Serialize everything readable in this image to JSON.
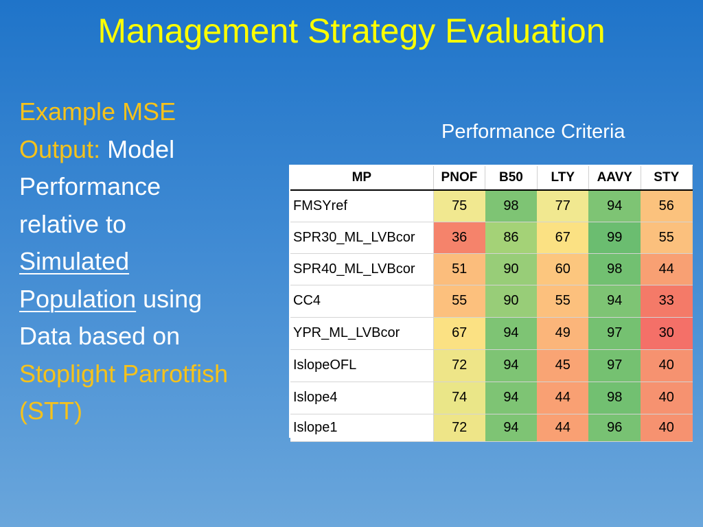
{
  "slide": {
    "title": "Management Strategy Evaluation",
    "left_text": {
      "part1": "Example MSE",
      "part2": "Output:",
      "part3": " Model",
      "part4": "Performance",
      "part5": "relative to",
      "part6": "Simulated",
      "part7": "Population",
      "part8": " using",
      "part9": "Data based on",
      "part10": "Stoplight Parrotfish",
      "part11": "(STT)"
    },
    "criteria_label": "Performance Criteria"
  },
  "table": {
    "headers": [
      "MP",
      "PNOF",
      "B50",
      "LTY",
      "AAVY",
      "STY"
    ],
    "rows": [
      {
        "name": "FMSYref",
        "values": [
          "75",
          "98",
          "77",
          "94",
          "56"
        ],
        "colors": [
          "#f1e890",
          "#7ec474",
          "#f1e890",
          "#7ec474",
          "#fbc27d"
        ]
      },
      {
        "name": "SPR30_ML_LVBcor",
        "values": [
          "36",
          "86",
          "67",
          "99",
          "55"
        ],
        "colors": [
          "#f5836b",
          "#a4d277",
          "#fbe183",
          "#6bbd70",
          "#fbc07d"
        ]
      },
      {
        "name": "SPR40_ML_LVBcor",
        "values": [
          "51",
          "90",
          "60",
          "98",
          "44"
        ],
        "colors": [
          "#fbbd7c",
          "#98cd78",
          "#fcc67e",
          "#72c071",
          "#f8a073"
        ]
      },
      {
        "name": "CC4",
        "values": [
          "55",
          "90",
          "55",
          "94",
          "33"
        ],
        "colors": [
          "#fcc07d",
          "#98cd78",
          "#fcc07d",
          "#7ec474",
          "#f47a68"
        ]
      },
      {
        "name": "YPR_ML_LVBcor",
        "values": [
          "67",
          "94",
          "49",
          "97",
          "30"
        ],
        "colors": [
          "#fbe183",
          "#7ec474",
          "#fbb57a",
          "#75c171",
          "#f47068"
        ]
      },
      {
        "name": "IslopeOFL",
        "values": [
          "72",
          "94",
          "45",
          "97",
          "40"
        ],
        "colors": [
          "#eee588",
          "#7ec474",
          "#f9a474",
          "#75c171",
          "#f69270"
        ]
      },
      {
        "name": "Islope4",
        "values": [
          "74",
          "94",
          "44",
          "98",
          "40"
        ],
        "colors": [
          "#eae688",
          "#7ec474",
          "#f9a073",
          "#72c071",
          "#f69270"
        ]
      },
      {
        "name": "Islope1",
        "values": [
          "72",
          "94",
          "44",
          "96",
          "40"
        ],
        "colors": [
          "#eee588",
          "#7ec474",
          "#f9a073",
          "#78c273",
          "#f69270"
        ]
      }
    ]
  }
}
